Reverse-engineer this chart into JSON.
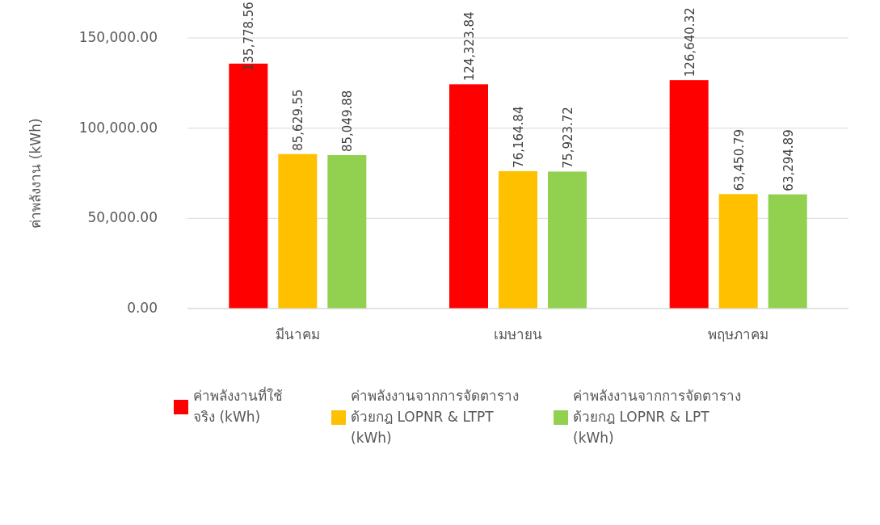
{
  "chart_data": {
    "type": "bar",
    "ylabel": "ค่าพลังงาน (kWh)",
    "categories": [
      "มีนาคม",
      "เมษายน",
      "พฤษภาคม"
    ],
    "series": [
      {
        "name": "ค่าพลังงานที่ใช้จริง (kWh)",
        "color": "#ff0000",
        "values": [
          135778.56,
          124323.84,
          126640.32
        ],
        "value_labels": [
          "135,778.56",
          "124,323.84",
          "126,640.32"
        ]
      },
      {
        "name": "ค่าพลังงานจากการจัดตารางด้วยกฎ LOPNR & LTPT (kWh)",
        "color": "#ffc000",
        "values": [
          85629.55,
          76164.84,
          63450.79
        ],
        "value_labels": [
          "85,629.55",
          "76,164.84",
          "63,450.79"
        ]
      },
      {
        "name": "ค่าพลังงานจากการจัดตารางด้วยกฎ LOPNR & LPT (kWh)",
        "color": "#92d050",
        "values": [
          85049.88,
          75923.72,
          63294.89
        ],
        "value_labels": [
          "85,049.88",
          "75,923.72",
          "63,294.89"
        ]
      }
    ],
    "ylim": [
      0,
      150000
    ],
    "yticks": [
      {
        "value": 0,
        "label": "0.00"
      },
      {
        "value": 50000,
        "label": "50,000.00"
      },
      {
        "value": 100000,
        "label": "100,000.00"
      },
      {
        "value": 150000,
        "label": "150,000.00"
      }
    ],
    "grid": "y",
    "legend": "bottom"
  }
}
